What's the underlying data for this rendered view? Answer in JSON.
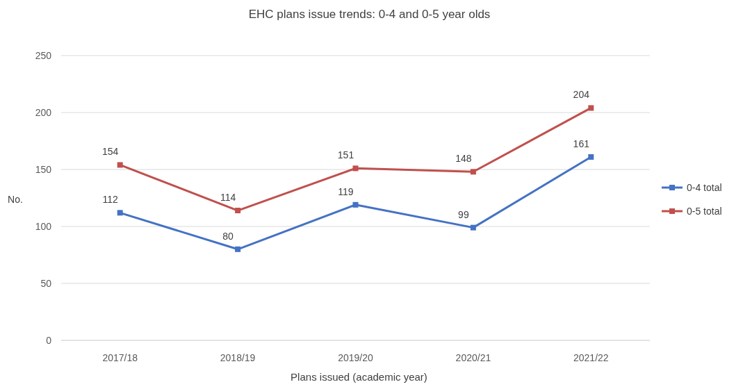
{
  "chart_data": {
    "type": "line",
    "title": "EHC plans issue trends: 0-4 and 0-5 year olds",
    "xlabel": "Plans issued (academic year)",
    "ylabel": "No.",
    "categories": [
      "2017/18",
      "2018/19",
      "2019/20",
      "2020/21",
      "2021/22"
    ],
    "series": [
      {
        "name": "0-4 total",
        "color": "#4472c4",
        "values": [
          112,
          80,
          119,
          99,
          161
        ]
      },
      {
        "name": "0-5 total",
        "color": "#c0504d",
        "values": [
          154,
          114,
          151,
          148,
          204
        ]
      }
    ],
    "ylim": [
      0,
      250
    ],
    "yticks": [
      0,
      50,
      100,
      150,
      200,
      250
    ],
    "grid": "y",
    "legend": "right",
    "marker": "square",
    "line_style": "solid",
    "data_labels": true
  }
}
